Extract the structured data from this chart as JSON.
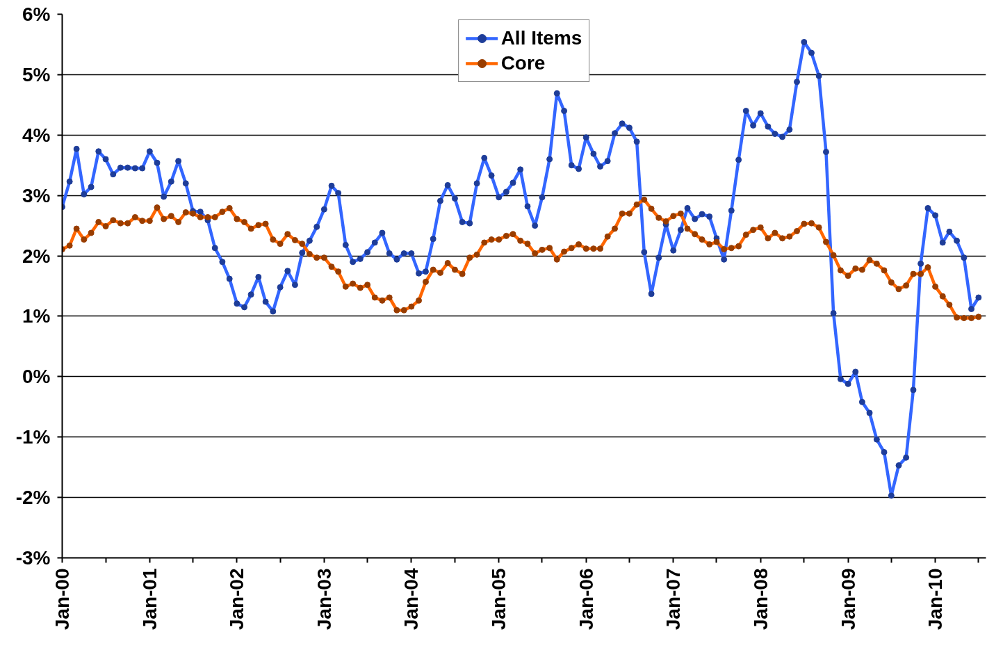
{
  "chart_data": {
    "type": "line",
    "x": [
      "2000-01",
      "2000-02",
      "2000-03",
      "2000-04",
      "2000-05",
      "2000-06",
      "2000-07",
      "2000-08",
      "2000-09",
      "2000-10",
      "2000-11",
      "2000-12",
      "2001-01",
      "2001-02",
      "2001-03",
      "2001-04",
      "2001-05",
      "2001-06",
      "2001-07",
      "2001-08",
      "2001-09",
      "2001-10",
      "2001-11",
      "2001-12",
      "2002-01",
      "2002-02",
      "2002-03",
      "2002-04",
      "2002-05",
      "2002-06",
      "2002-07",
      "2002-08",
      "2002-09",
      "2002-10",
      "2002-11",
      "2002-12",
      "2003-01",
      "2003-02",
      "2003-03",
      "2003-04",
      "2003-05",
      "2003-06",
      "2003-07",
      "2003-08",
      "2003-09",
      "2003-10",
      "2003-11",
      "2003-12",
      "2004-01",
      "2004-02",
      "2004-03",
      "2004-04",
      "2004-05",
      "2004-06",
      "2004-07",
      "2004-08",
      "2004-09",
      "2004-10",
      "2004-11",
      "2004-12",
      "2005-01",
      "2005-02",
      "2005-03",
      "2005-04",
      "2005-05",
      "2005-06",
      "2005-07",
      "2005-08",
      "2005-09",
      "2005-10",
      "2005-11",
      "2005-12",
      "2006-01",
      "2006-02",
      "2006-03",
      "2006-04",
      "2006-05",
      "2006-06",
      "2006-07",
      "2006-08",
      "2006-09",
      "2006-10",
      "2006-11",
      "2006-12",
      "2007-01",
      "2007-02",
      "2007-03",
      "2007-04",
      "2007-05",
      "2007-06",
      "2007-07",
      "2007-08",
      "2007-09",
      "2007-10",
      "2007-11",
      "2007-12",
      "2008-01",
      "2008-02",
      "2008-03",
      "2008-04",
      "2008-05",
      "2008-06",
      "2008-07",
      "2008-08",
      "2008-09",
      "2008-10",
      "2008-11",
      "2008-12",
      "2009-01",
      "2009-02",
      "2009-03",
      "2009-04",
      "2009-05",
      "2009-06",
      "2009-07",
      "2009-08",
      "2009-09",
      "2009-10",
      "2009-11",
      "2009-12",
      "2010-01",
      "2010-02",
      "2010-03",
      "2010-04",
      "2010-05",
      "2010-06",
      "2010-07"
    ],
    "series": [
      {
        "name": "All Items",
        "color": "#3366ff",
        "values": [
          2.81,
          3.23,
          3.77,
          3.02,
          3.14,
          3.73,
          3.6,
          3.35,
          3.46,
          3.46,
          3.45,
          3.45,
          3.73,
          3.54,
          2.98,
          3.23,
          3.57,
          3.2,
          2.74,
          2.73,
          2.59,
          2.13,
          1.9,
          1.62,
          1.21,
          1.15,
          1.36,
          1.65,
          1.24,
          1.08,
          1.48,
          1.75,
          1.52,
          2.05,
          2.25,
          2.48,
          2.77,
          3.16,
          3.04,
          2.18,
          1.9,
          1.95,
          2.06,
          2.22,
          2.38,
          2.04,
          1.94,
          2.04,
          2.04,
          1.71,
          1.74,
          2.28,
          2.91,
          3.17,
          2.95,
          2.56,
          2.54,
          3.2,
          3.62,
          3.33,
          2.97,
          3.06,
          3.21,
          3.43,
          2.82,
          2.5,
          2.97,
          3.6,
          4.69,
          4.4,
          3.5,
          3.44,
          3.96,
          3.69,
          3.48,
          3.57,
          4.03,
          4.19,
          4.12,
          3.89,
          2.06,
          1.37,
          1.97,
          2.52,
          2.09,
          2.43,
          2.79,
          2.61,
          2.69,
          2.65,
          2.29,
          1.94,
          2.75,
          3.59,
          4.4,
          4.16,
          4.36,
          4.14,
          4.02,
          3.97,
          4.09,
          4.88,
          5.54,
          5.36,
          4.98,
          3.72,
          1.05,
          -0.04,
          -0.12,
          0.08,
          -0.42,
          -0.6,
          -1.04,
          -1.25,
          -1.97,
          -1.47,
          -1.34,
          -0.22,
          1.87,
          2.79,
          2.67,
          2.22,
          2.4,
          2.25,
          1.97,
          1.12,
          1.31
        ]
      },
      {
        "name": "Core",
        "color": "#ff6600",
        "values": [
          2.11,
          2.17,
          2.45,
          2.27,
          2.38,
          2.56,
          2.49,
          2.59,
          2.54,
          2.54,
          2.64,
          2.58,
          2.58,
          2.8,
          2.61,
          2.66,
          2.56,
          2.72,
          2.7,
          2.64,
          2.64,
          2.64,
          2.73,
          2.79,
          2.61,
          2.56,
          2.45,
          2.51,
          2.53,
          2.27,
          2.2,
          2.36,
          2.26,
          2.2,
          2.03,
          1.97,
          1.97,
          1.82,
          1.74,
          1.49,
          1.54,
          1.47,
          1.52,
          1.31,
          1.26,
          1.31,
          1.1,
          1.1,
          1.16,
          1.26,
          1.57,
          1.77,
          1.72,
          1.88,
          1.77,
          1.7,
          1.97,
          2.02,
          2.22,
          2.27,
          2.27,
          2.33,
          2.36,
          2.25,
          2.2,
          2.04,
          2.1,
          2.13,
          1.94,
          2.07,
          2.13,
          2.19,
          2.12,
          2.12,
          2.12,
          2.32,
          2.45,
          2.7,
          2.7,
          2.85,
          2.93,
          2.78,
          2.63,
          2.57,
          2.66,
          2.7,
          2.45,
          2.36,
          2.27,
          2.19,
          2.23,
          2.11,
          2.13,
          2.16,
          2.35,
          2.43,
          2.47,
          2.29,
          2.38,
          2.29,
          2.32,
          2.41,
          2.53,
          2.54,
          2.47,
          2.23,
          2.01,
          1.76,
          1.67,
          1.79,
          1.77,
          1.93,
          1.87,
          1.76,
          1.56,
          1.45,
          1.51,
          1.7,
          1.7,
          1.81,
          1.49,
          1.33,
          1.19,
          0.98,
          0.97,
          0.97,
          0.99
        ]
      }
    ],
    "xlim": [
      "2000-01",
      "2010-08"
    ],
    "xticks": [
      {
        "value": "2000-01",
        "label": "Jan-00"
      },
      {
        "value": "2000-07",
        "label": null
      },
      {
        "value": "2001-01",
        "label": "Jan-01"
      },
      {
        "value": "2001-07",
        "label": null
      },
      {
        "value": "2002-01",
        "label": "Jan-02"
      },
      {
        "value": "2002-07",
        "label": null
      },
      {
        "value": "2003-01",
        "label": "Jan-03"
      },
      {
        "value": "2003-07",
        "label": null
      },
      {
        "value": "2004-01",
        "label": "Jan-04"
      },
      {
        "value": "2004-07",
        "label": null
      },
      {
        "value": "2005-01",
        "label": "Jan-05"
      },
      {
        "value": "2005-07",
        "label": null
      },
      {
        "value": "2006-01",
        "label": "Jan-06"
      },
      {
        "value": "2006-07",
        "label": null
      },
      {
        "value": "2007-01",
        "label": "Jan-07"
      },
      {
        "value": "2007-07",
        "label": null
      },
      {
        "value": "2008-01",
        "label": "Jan-08"
      },
      {
        "value": "2008-07",
        "label": null
      },
      {
        "value": "2009-01",
        "label": "Jan-09"
      },
      {
        "value": "2009-07",
        "label": null
      },
      {
        "value": "2010-01",
        "label": "Jan-10"
      },
      {
        "value": "2010-07",
        "label": null
      }
    ],
    "ylim": [
      -3,
      6
    ],
    "yticks": [
      {
        "value": -3,
        "label": "-3%"
      },
      {
        "value": -2,
        "label": "-2%"
      },
      {
        "value": -1,
        "label": "-1%"
      },
      {
        "value": 0,
        "label": "0%"
      },
      {
        "value": 1,
        "label": "1%"
      },
      {
        "value": 2,
        "label": "2%"
      },
      {
        "value": 3,
        "label": "3%"
      },
      {
        "value": 4,
        "label": "4%"
      },
      {
        "value": 5,
        "label": "5%"
      },
      {
        "value": 6,
        "label": "6%"
      }
    ],
    "grid": "y",
    "legend": "top",
    "marker": "circle",
    "line_style": "solid"
  }
}
